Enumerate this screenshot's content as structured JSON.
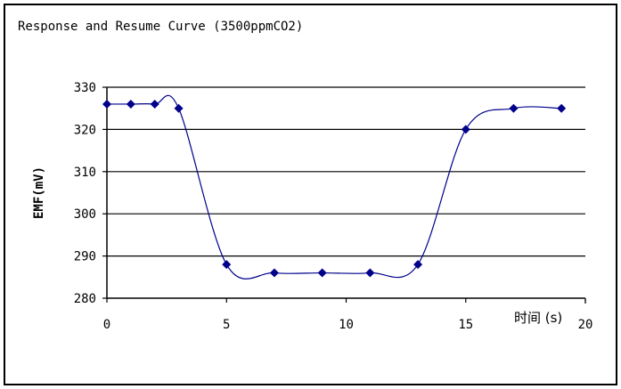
{
  "chart_data": {
    "type": "line",
    "title": "Response and Resume Curve  (3500ppmCO2)",
    "xlabel": "时间 (s)",
    "ylabel": "EMF(mV)",
    "xlim": [
      0,
      20
    ],
    "ylim": [
      280,
      330
    ],
    "xticks": [
      0,
      5,
      10,
      15,
      20
    ],
    "yticks": [
      280,
      290,
      300,
      310,
      320,
      330
    ],
    "grid": "horizontal",
    "marker": "diamond",
    "series_color": "#00008B",
    "series": [
      {
        "x": [
          0,
          1,
          2,
          3,
          5,
          7,
          9,
          11,
          13,
          15,
          17,
          19
        ],
        "y": [
          326,
          326,
          326,
          325,
          288,
          286,
          286,
          286,
          288,
          320,
          325,
          325
        ]
      }
    ]
  }
}
